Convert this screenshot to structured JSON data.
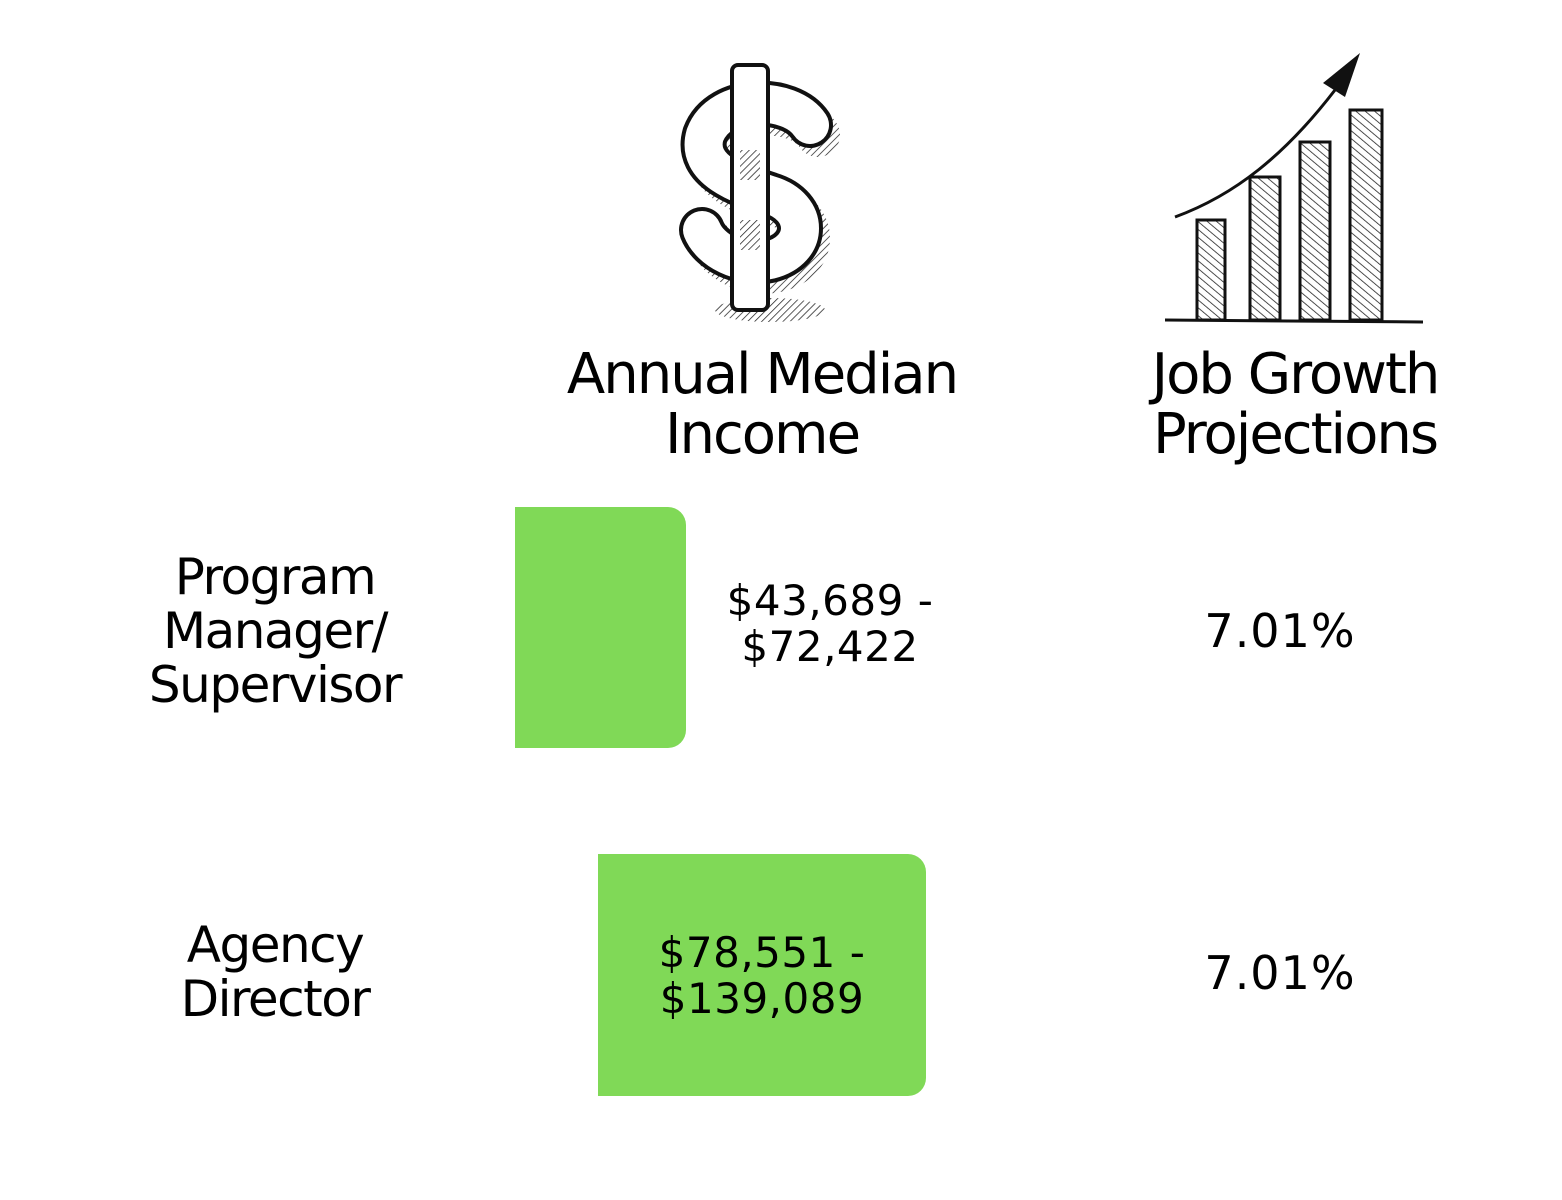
{
  "chart_data": {
    "type": "bar",
    "orientation": "horizontal",
    "categories": [
      "Program Manager/ Supervisor",
      "Agency Director"
    ],
    "column_headers": {
      "income": [
        "Annual Median",
        "Income"
      ],
      "growth": [
        "Job Growth",
        "Projections"
      ]
    },
    "rows": [
      {
        "label_lines": [
          "Program",
          "Manager/",
          "Supervisor"
        ],
        "income_lines": [
          "$43,689 -",
          "$72,422"
        ],
        "income_range": [
          43689,
          72422
        ],
        "growth": "7.01%"
      },
      {
        "label_lines": [
          "Agency",
          "Director"
        ],
        "income_lines": [
          "$78,551 -",
          "$139,089"
        ],
        "income_range": [
          78551,
          139089
        ],
        "growth": "7.01%"
      }
    ],
    "bar_color": "#80d957"
  },
  "icons": {
    "income": "dollar-sign-icon",
    "growth": "bar-chart-growth-icon"
  }
}
